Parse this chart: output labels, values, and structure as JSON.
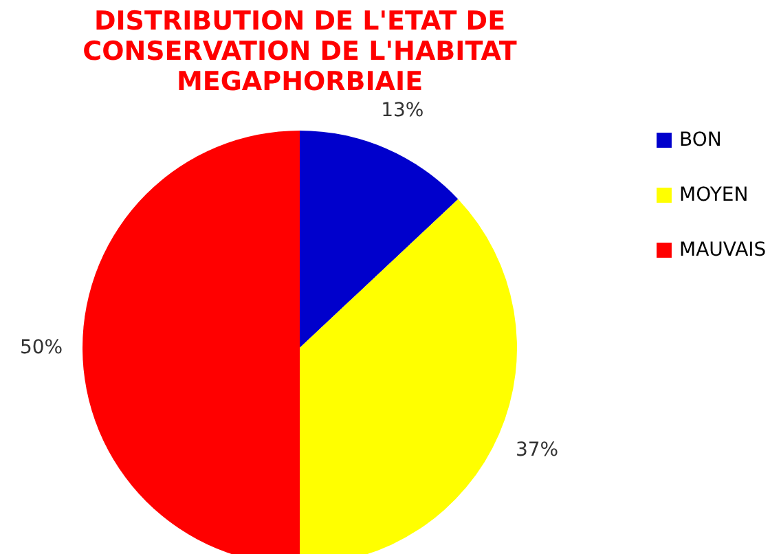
{
  "chart_data": {
    "type": "pie",
    "title": "DISTRIBUTION DE L'ETAT DE\nCONSERVATION DE L'HABITAT\nMEGAPHORBIAIE",
    "categories": [
      "BON",
      "MOYEN",
      "MAUVAIS"
    ],
    "values": [
      13,
      37,
      50
    ],
    "colors": [
      "#0000cc",
      "#ffff00",
      "#ff0000"
    ],
    "value_labels": [
      "13%",
      "37%",
      "50%"
    ],
    "legend": "right"
  }
}
